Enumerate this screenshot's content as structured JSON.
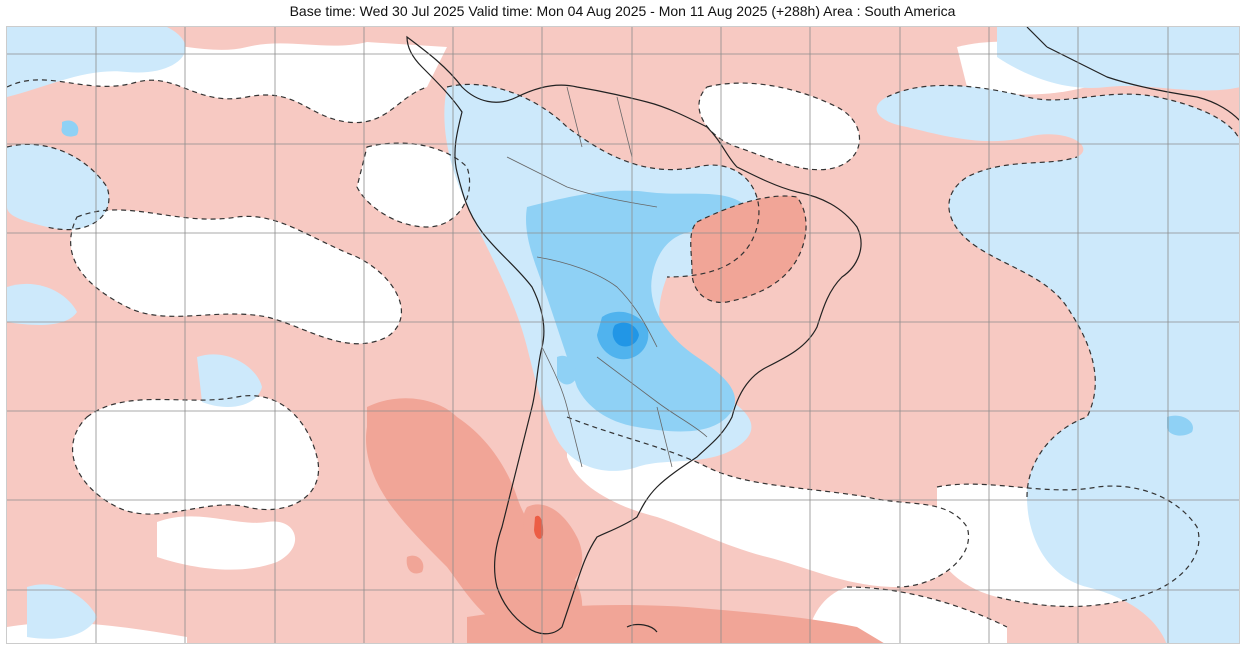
{
  "header": {
    "title": "Base time: Wed 30 Jul 2025 Valid time: Mon 04 Aug 2025 - Mon 11 Aug 2025 (+288h) Area : South America"
  },
  "map": {
    "colors": {
      "warm_light": "#f7c9c2",
      "warm_medium": "#f1a597",
      "warm_strong": "#ec5d45",
      "cool_light": "#cde9fb",
      "cool_medium": "#8fd1f5",
      "cool_strong": "#50b3ee",
      "cool_core": "#2196e6",
      "gridline": "#8c8c8c",
      "coastline": "#222222",
      "border": "#555555",
      "contour": "#333333"
    }
  }
}
